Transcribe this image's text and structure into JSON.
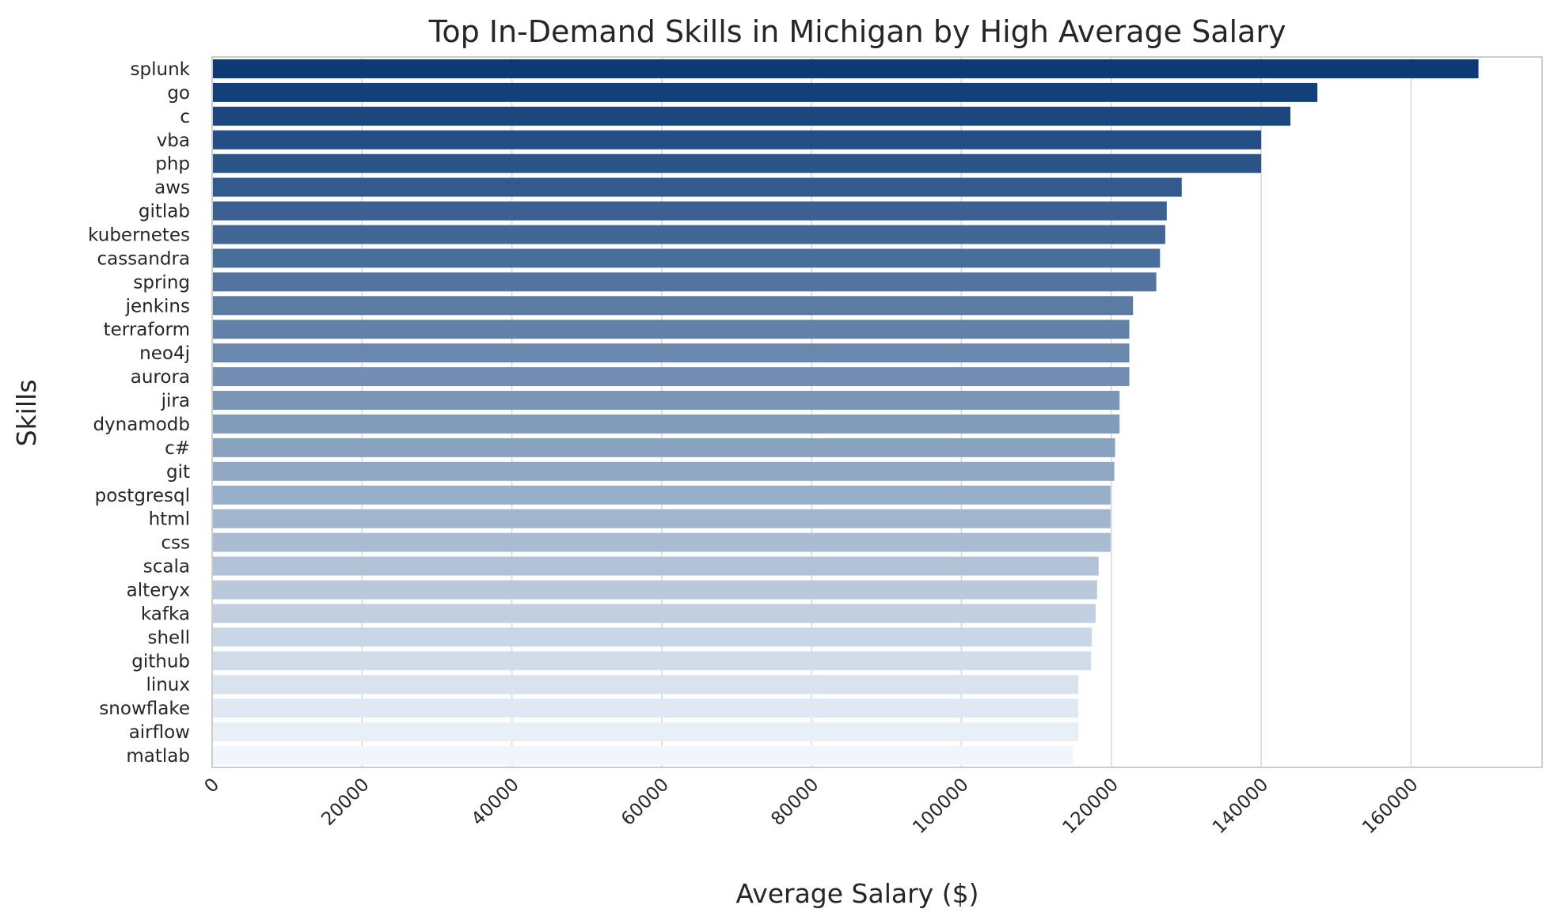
{
  "chart_data": {
    "type": "bar",
    "orientation": "horizontal",
    "title": "Top In-Demand Skills in Michigan by High Average Salary",
    "xlabel": "Average Salary ($)",
    "ylabel": "Skills",
    "xlim": [
      0,
      177500
    ],
    "xticks": [
      "0",
      "20000",
      "40000",
      "60000",
      "80000",
      "100000",
      "120000",
      "140000",
      "160000"
    ],
    "xtick_values": [
      0,
      20000,
      40000,
      60000,
      80000,
      100000,
      120000,
      140000,
      160000
    ],
    "grid": true,
    "legend": "none",
    "palette_dark": "#0b3a75",
    "palette_light": "#f0f6fc",
    "categories": [
      "splunk",
      "go",
      "c",
      "vba",
      "php",
      "aws",
      "gitlab",
      "kubernetes",
      "cassandra",
      "spring",
      "jenkins",
      "terraform",
      "neo4j",
      "aurora",
      "jira",
      "dynamodb",
      "c#",
      "git",
      "postgresql",
      "html",
      "css",
      "scala",
      "alteryx",
      "kafka",
      "shell",
      "github",
      "linux",
      "snowflake",
      "airflow",
      "matlab"
    ],
    "values": [
      169000,
      147500,
      143900,
      140000,
      140000,
      129400,
      127400,
      127200,
      126500,
      126000,
      122900,
      122400,
      122400,
      122400,
      121100,
      121100,
      120500,
      120400,
      119900,
      119900,
      119900,
      118300,
      118100,
      117900,
      117400,
      117300,
      115600,
      115600,
      115600,
      114900
    ]
  }
}
